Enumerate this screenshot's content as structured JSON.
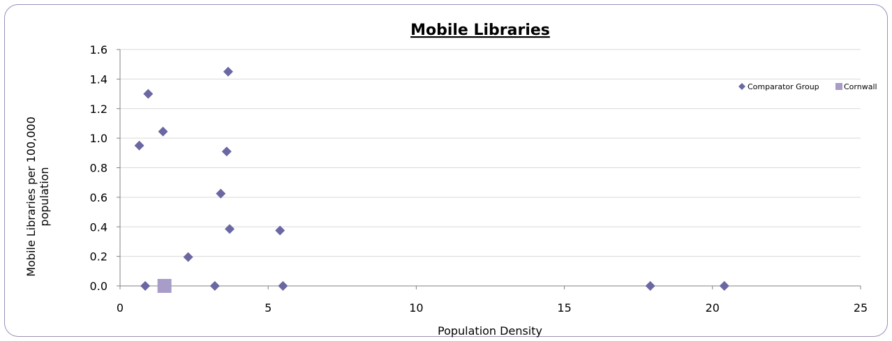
{
  "chart_data": {
    "type": "scatter",
    "title": "Mobile Libraries",
    "xlabel": "Population Density",
    "ylabel_lines": [
      "Mobile Libraries per 100,000",
      "population"
    ],
    "xlim": [
      0,
      25
    ],
    "ylim": [
      0,
      1.6
    ],
    "x_ticks": [
      "0",
      "5",
      "10",
      "15",
      "20",
      "25"
    ],
    "y_ticks": [
      "0.0",
      "0.2",
      "0.4",
      "0.6",
      "0.8",
      "1.0",
      "1.2",
      "1.4",
      "1.6"
    ],
    "grid": "horizontal",
    "legend_position": "top-right",
    "series": [
      {
        "name": "Comparator Group",
        "marker": "diamond",
        "color": "#6a67a3",
        "points": [
          [
            0.65,
            0.95
          ],
          [
            0.95,
            1.3
          ],
          [
            1.45,
            1.045
          ],
          [
            0.85,
            0.0
          ],
          [
            2.3,
            0.195
          ],
          [
            3.2,
            0.0
          ],
          [
            3.4,
            0.625
          ],
          [
            3.6,
            0.91
          ],
          [
            3.65,
            1.45
          ],
          [
            3.7,
            0.385
          ],
          [
            5.4,
            0.375
          ],
          [
            5.5,
            0.0
          ],
          [
            17.9,
            0.0
          ],
          [
            20.4,
            0.0
          ]
        ]
      },
      {
        "name": "Cornwall",
        "marker": "square",
        "color": "#a89cc8",
        "points": [
          [
            1.5,
            0.0
          ]
        ]
      }
    ]
  }
}
